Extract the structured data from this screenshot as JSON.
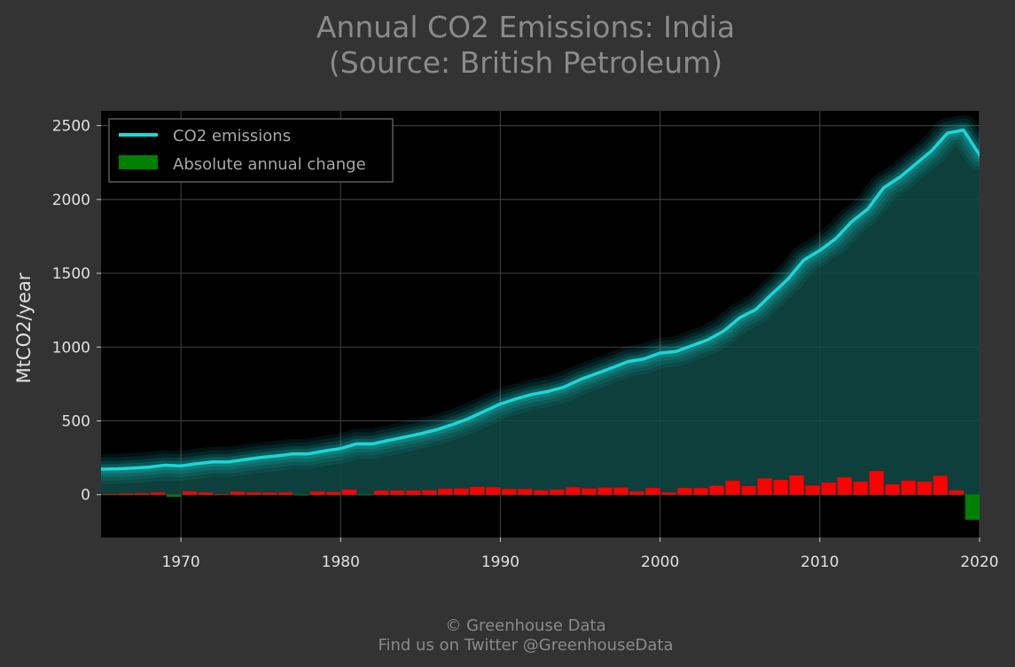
{
  "footer": {
    "line1": "© Greenhouse Data",
    "line2": "Find us on Twitter @GreenhouseData"
  },
  "colors": {
    "background": "#333333",
    "plot_background": "#000000",
    "line": "#19d8d8",
    "area": "#0f4a47",
    "positive_change": "#ff0000",
    "negative_change": "#008000"
  },
  "chart_data": {
    "type": "line",
    "title": "Annual CO2 Emissions: India",
    "subtitle": "(Source: British Petroleum)",
    "xlabel": "",
    "ylabel": "MtCO2/year",
    "xlim": [
      1965,
      2020
    ],
    "ylim": [
      -290,
      2600
    ],
    "xticks": [
      1970,
      1980,
      1990,
      2000,
      2010,
      2020
    ],
    "yticks": [
      0,
      500,
      1000,
      1500,
      2000,
      2500
    ],
    "grid": true,
    "legend_position": "top-left",
    "series": [
      {
        "name": "CO2 emissions",
        "kind": "line",
        "x": [
          1965,
          1966,
          1967,
          1968,
          1969,
          1970,
          1971,
          1972,
          1973,
          1974,
          1975,
          1976,
          1977,
          1978,
          1979,
          1980,
          1981,
          1982,
          1983,
          1984,
          1985,
          1986,
          1987,
          1988,
          1989,
          1990,
          1991,
          1992,
          1993,
          1994,
          1995,
          1996,
          1997,
          1998,
          1999,
          2000,
          2001,
          2002,
          2003,
          2004,
          2005,
          2006,
          2007,
          2008,
          2009,
          2010,
          2011,
          2012,
          2013,
          2014,
          2015,
          2016,
          2017,
          2018,
          2019,
          2020
        ],
        "y": [
          173,
          175,
          180,
          187,
          200,
          195,
          210,
          222,
          222,
          238,
          252,
          263,
          276,
          277,
          297,
          313,
          345,
          344,
          368,
          390,
          413,
          440,
          475,
          515,
          565,
          615,
          650,
          680,
          700,
          730,
          780,
          820,
          860,
          902,
          920,
          960,
          970,
          1010,
          1050,
          1110,
          1200,
          1255,
          1360,
          1460,
          1590,
          1655,
          1735,
          1850,
          1935,
          2080,
          2150,
          2240,
          2330,
          2450,
          2470,
          2302
        ]
      },
      {
        "name": "Absolute annual change",
        "kind": "bar",
        "x": [
          1966,
          1967,
          1968,
          1969,
          1970,
          1971,
          1972,
          1973,
          1974,
          1975,
          1976,
          1977,
          1978,
          1979,
          1980,
          1981,
          1982,
          1983,
          1984,
          1985,
          1986,
          1987,
          1988,
          1989,
          1990,
          1991,
          1992,
          1993,
          1994,
          1995,
          1996,
          1997,
          1998,
          1999,
          2000,
          2001,
          2002,
          2003,
          2004,
          2005,
          2006,
          2007,
          2008,
          2009,
          2010,
          2011,
          2012,
          2013,
          2014,
          2015,
          2016,
          2017,
          2018,
          2019,
          2020
        ],
        "y": [
          5,
          8,
          10,
          15,
          -15,
          22,
          15,
          5,
          20,
          15,
          14,
          15,
          -5,
          22,
          18,
          35,
          -2,
          28,
          28,
          28,
          30,
          40,
          42,
          52,
          50,
          38,
          38,
          30,
          35,
          50,
          42,
          48,
          48,
          22,
          45,
          15,
          45,
          45,
          60,
          95,
          58,
          110,
          100,
          130,
          62,
          82,
          118,
          88,
          160,
          70,
          95,
          88,
          128,
          30,
          -170
        ]
      }
    ]
  }
}
